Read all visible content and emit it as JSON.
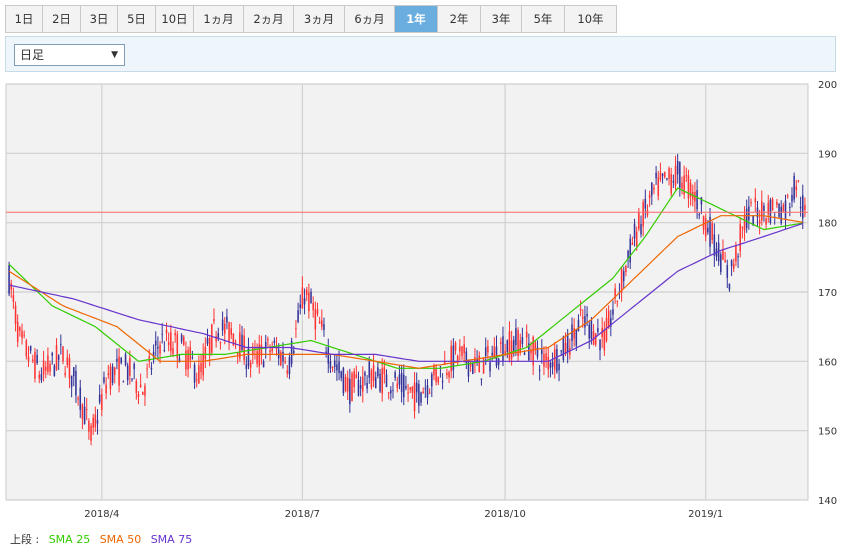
{
  "period_tabs": [
    {
      "label": "1日",
      "active": false
    },
    {
      "label": "2日",
      "active": false
    },
    {
      "label": "3日",
      "active": false
    },
    {
      "label": "5日",
      "active": false
    },
    {
      "label": "10日",
      "active": false
    },
    {
      "label": "1ヵ月",
      "active": false
    },
    {
      "label": "2ヵ月",
      "active": false
    },
    {
      "label": "3ヵ月",
      "active": false
    },
    {
      "label": "6ヵ月",
      "active": false
    },
    {
      "label": "1年",
      "active": true
    },
    {
      "label": "2年",
      "active": false
    },
    {
      "label": "3年",
      "active": false
    },
    {
      "label": "5年",
      "active": false
    },
    {
      "label": "10年",
      "active": false
    }
  ],
  "interval_select": {
    "value": "日足",
    "arrow": "▼"
  },
  "legend": {
    "prefix": "上段 :",
    "items": [
      {
        "label": "SMA 25",
        "color": "#33cc00"
      },
      {
        "label": "SMA 50",
        "color": "#ee6600"
      },
      {
        "label": "SMA 75",
        "color": "#6633cc"
      }
    ]
  },
  "chart_data": {
    "type": "candlestick",
    "x_tick_labels": [
      "2018/4",
      "2018/7",
      "2018/10",
      "2019/1"
    ],
    "x_ticks_idx": [
      43,
      136,
      230,
      323
    ],
    "ylim": [
      140,
      200
    ],
    "y_ticks": [
      140,
      150,
      160,
      170,
      180,
      190,
      200
    ],
    "grid": true,
    "reference_line": 181.5,
    "colors": {
      "up": "#ff3333",
      "down": "#333399",
      "sma25": "#33cc00",
      "sma50": "#ee6600",
      "sma75": "#6633cc",
      "ref": "#ff6666"
    },
    "candle_count": 370,
    "close_waypoints": [
      [
        0,
        172
      ],
      [
        5,
        163
      ],
      [
        15,
        158
      ],
      [
        25,
        161
      ],
      [
        33,
        155
      ],
      [
        38,
        149
      ],
      [
        46,
        158
      ],
      [
        54,
        159
      ],
      [
        62,
        156
      ],
      [
        70,
        163
      ],
      [
        80,
        162
      ],
      [
        88,
        158
      ],
      [
        96,
        165
      ],
      [
        104,
        164
      ],
      [
        112,
        160
      ],
      [
        122,
        162
      ],
      [
        130,
        160
      ],
      [
        137,
        170
      ],
      [
        143,
        166
      ],
      [
        150,
        160
      ],
      [
        158,
        156
      ],
      [
        168,
        158
      ],
      [
        178,
        157
      ],
      [
        188,
        155
      ],
      [
        198,
        158
      ],
      [
        208,
        161
      ],
      [
        218,
        159
      ],
      [
        228,
        162
      ],
      [
        238,
        163
      ],
      [
        248,
        160
      ],
      [
        256,
        161
      ],
      [
        266,
        166
      ],
      [
        276,
        163
      ],
      [
        290,
        178
      ],
      [
        300,
        185
      ],
      [
        310,
        187
      ],
      [
        318,
        184
      ],
      [
        326,
        178
      ],
      [
        334,
        172
      ],
      [
        342,
        181
      ],
      [
        352,
        182
      ],
      [
        360,
        182
      ],
      [
        365,
        186
      ],
      [
        369,
        181
      ]
    ],
    "series": [
      {
        "name": "SMA 25",
        "color": "#33cc00",
        "waypoints": [
          [
            0,
            174
          ],
          [
            20,
            168
          ],
          [
            40,
            165
          ],
          [
            60,
            160
          ],
          [
            80,
            161
          ],
          [
            100,
            161
          ],
          [
            120,
            162
          ],
          [
            140,
            163
          ],
          [
            160,
            161
          ],
          [
            180,
            159
          ],
          [
            200,
            159
          ],
          [
            220,
            160
          ],
          [
            240,
            162
          ],
          [
            260,
            167
          ],
          [
            280,
            172
          ],
          [
            295,
            178
          ],
          [
            310,
            185
          ],
          [
            330,
            182
          ],
          [
            350,
            179
          ],
          [
            369,
            180
          ]
        ]
      },
      {
        "name": "SMA 50",
        "color": "#ee6600",
        "waypoints": [
          [
            0,
            173
          ],
          [
            25,
            168
          ],
          [
            50,
            165
          ],
          [
            70,
            160
          ],
          [
            90,
            160
          ],
          [
            110,
            161
          ],
          [
            130,
            161
          ],
          [
            150,
            161
          ],
          [
            170,
            160
          ],
          [
            190,
            159
          ],
          [
            210,
            160
          ],
          [
            230,
            161
          ],
          [
            250,
            162
          ],
          [
            270,
            166
          ],
          [
            290,
            172
          ],
          [
            310,
            178
          ],
          [
            330,
            181
          ],
          [
            350,
            181
          ],
          [
            369,
            180
          ]
        ]
      },
      {
        "name": "SMA 75",
        "color": "#6633cc",
        "waypoints": [
          [
            0,
            171
          ],
          [
            30,
            169
          ],
          [
            60,
            166
          ],
          [
            90,
            164
          ],
          [
            110,
            162
          ],
          [
            130,
            162
          ],
          [
            150,
            161
          ],
          [
            170,
            161
          ],
          [
            190,
            160
          ],
          [
            210,
            160
          ],
          [
            230,
            160
          ],
          [
            250,
            160
          ],
          [
            270,
            163
          ],
          [
            290,
            168
          ],
          [
            310,
            173
          ],
          [
            330,
            176
          ],
          [
            350,
            178
          ],
          [
            369,
            180
          ]
        ]
      }
    ]
  }
}
